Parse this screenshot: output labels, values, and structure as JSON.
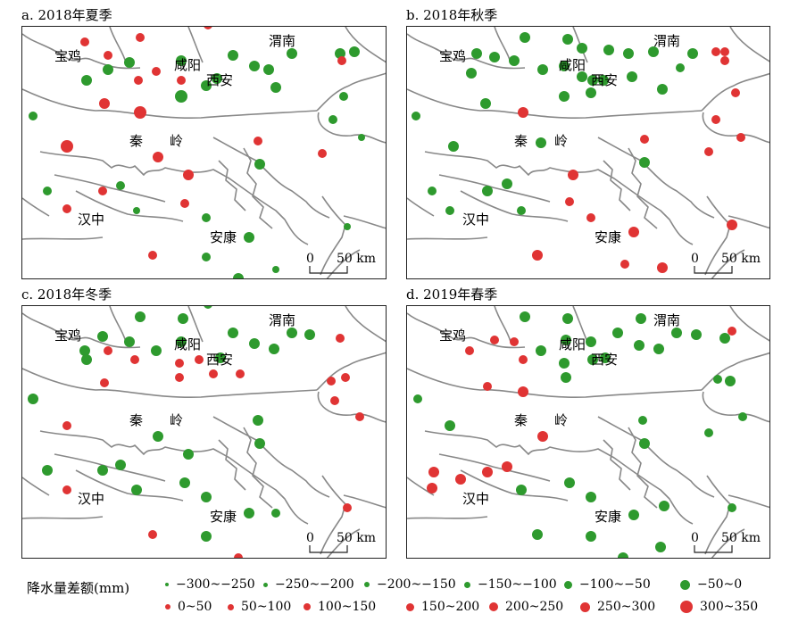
{
  "colors": {
    "decrease": "#2e9a2e",
    "increase": "#e03434",
    "boundary": "#888888",
    "frame": "#222222"
  },
  "panels": [
    {
      "title": "a. 2018年夏季"
    },
    {
      "title": "b. 2018年秋季"
    },
    {
      "title": "c. 2018年冬季"
    },
    {
      "title": "d. 2019年春季"
    }
  ],
  "place_names": {
    "baoji": "宝鸡",
    "xianyang": "咸阳",
    "xian": "西安",
    "weinan": "渭南",
    "qinling_1": "秦",
    "qinling_2": "岭",
    "hanzhong": "汉中",
    "ankang": "安康"
  },
  "scale_bar": {
    "zero": "0",
    "distance": "50 km"
  },
  "legend": {
    "title": "降水量差额(mm)",
    "classes": [
      {
        "label": "−300~−250",
        "sign": "decrease",
        "level": 1
      },
      {
        "label": "−250~−200",
        "sign": "decrease",
        "level": 2
      },
      {
        "label": "−200~−150",
        "sign": "decrease",
        "level": 3
      },
      {
        "label": "−150~−100",
        "sign": "decrease",
        "level": 4
      },
      {
        "label": "−100~−50",
        "sign": "decrease",
        "level": 5
      },
      {
        "label": "−50~0",
        "sign": "decrease",
        "level": 6
      },
      {
        "label": "0~50",
        "sign": "increase",
        "level": 1
      },
      {
        "label": "50~100",
        "sign": "increase",
        "level": 2
      },
      {
        "label": "100~150",
        "sign": "increase",
        "level": 3
      },
      {
        "label": "150~200",
        "sign": "increase",
        "level": 4
      },
      {
        "label": "200~250",
        "sign": "increase",
        "level": 5
      },
      {
        "label": "250~300",
        "sign": "increase",
        "level": 6
      },
      {
        "label": "300~350",
        "sign": "increase",
        "level": 7
      }
    ]
  }
}
